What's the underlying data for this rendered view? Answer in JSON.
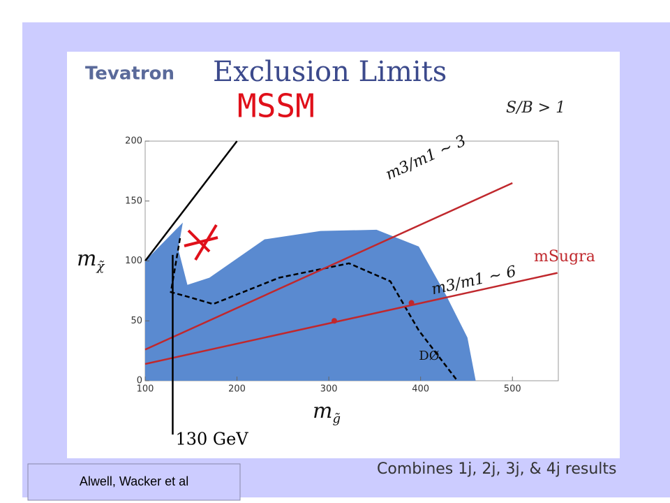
{
  "header": {
    "experiment": "Tevatron",
    "handwritten": "MSSM",
    "note": "S/B > 1"
  },
  "chart_data": {
    "type": "region",
    "title": "Exclusion Limits",
    "x_label": {
      "main": "m",
      "sub": "g̃"
    },
    "y_label": {
      "main": "m",
      "sub": "χ̃"
    },
    "xlim": [
      100,
      550
    ],
    "ylim": [
      0,
      200
    ],
    "xticks": [
      100,
      200,
      300,
      400,
      500
    ],
    "yticks": [
      0,
      50,
      100,
      150,
      200
    ],
    "series": [
      {
        "color": "#5a8ad0",
        "fill": true,
        "x": [
          100,
          141,
          136,
          146,
          170,
          230,
          291,
          352,
          398,
          428,
          451,
          460,
          100
        ],
        "y": [
          100,
          132,
          110,
          80,
          86,
          118,
          125,
          126,
          112,
          71,
          36,
          0,
          0
        ]
      },
      {
        "color": "#000000",
        "x": [
          100,
          200
        ],
        "y": [
          100,
          200
        ]
      },
      {
        "name": "DØ",
        "color": "#000000",
        "dashed": true,
        "x": [
          138,
          128,
          147,
          174,
          246,
          322,
          367,
          398,
          440
        ],
        "y": [
          119,
          74,
          70,
          64,
          86,
          98,
          83,
          42,
          0
        ]
      },
      {
        "name": "m3/m1 ~ 3",
        "color": "#c0282d",
        "x": [
          100,
          500
        ],
        "y": [
          26,
          165
        ]
      },
      {
        "name": "m3/m1 ~ 6",
        "color": "#c0282d",
        "x": [
          100,
          549
        ],
        "y": [
          14,
          90
        ]
      }
    ],
    "points": {
      "color": "#c0282d",
      "x": [
        306,
        390
      ],
      "y": [
        50,
        65
      ]
    },
    "model_label": "mSugra",
    "cut": {
      "x": 130,
      "top": 105,
      "label": "130 GeV"
    }
  },
  "footer": {
    "summary": "Combines 1j, 2j, 3j, & 4j results",
    "credit": "Alwell, Wacker et al"
  }
}
